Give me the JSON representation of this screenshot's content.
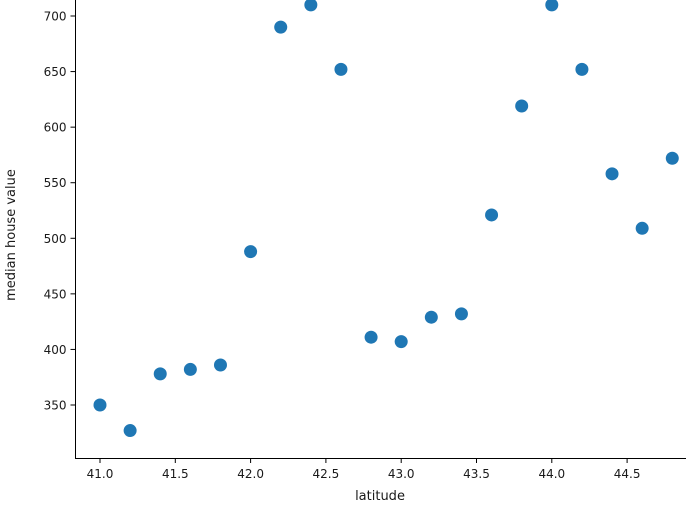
{
  "chart_data": {
    "type": "scatter",
    "title": "",
    "xlabel": "latitude",
    "ylabel": "median house value",
    "x": [
      41.0,
      41.2,
      41.4,
      41.6,
      41.8,
      42.0,
      42.2,
      42.4,
      42.6,
      42.8,
      43.0,
      43.2,
      43.4,
      43.6,
      43.8,
      44.0,
      44.2,
      44.4,
      44.6,
      44.8
    ],
    "y": [
      350,
      327,
      378,
      382,
      386,
      488,
      690,
      710,
      652,
      411,
      407,
      429,
      432,
      521,
      619,
      710,
      652,
      558,
      509,
      572
    ],
    "x_tick_labels": [
      "41.0",
      "41.5",
      "42.0",
      "42.5",
      "43.0",
      "43.5",
      "44.0",
      "44.5"
    ],
    "x_tick_values": [
      41.0,
      41.5,
      42.0,
      42.5,
      43.0,
      43.5,
      44.0,
      44.5
    ],
    "y_tick_labels": [
      "350",
      "400",
      "450",
      "500",
      "550",
      "600",
      "650",
      "700"
    ],
    "y_tick_values": [
      350,
      400,
      450,
      500,
      550,
      600,
      650,
      700
    ],
    "xlim": [
      40.83,
      44.89
    ],
    "ylim": [
      300,
      714
    ],
    "grid": false,
    "legend": "none",
    "point_color": "#1f77b4",
    "axis_color": "#000000",
    "background": "#ffffff"
  }
}
